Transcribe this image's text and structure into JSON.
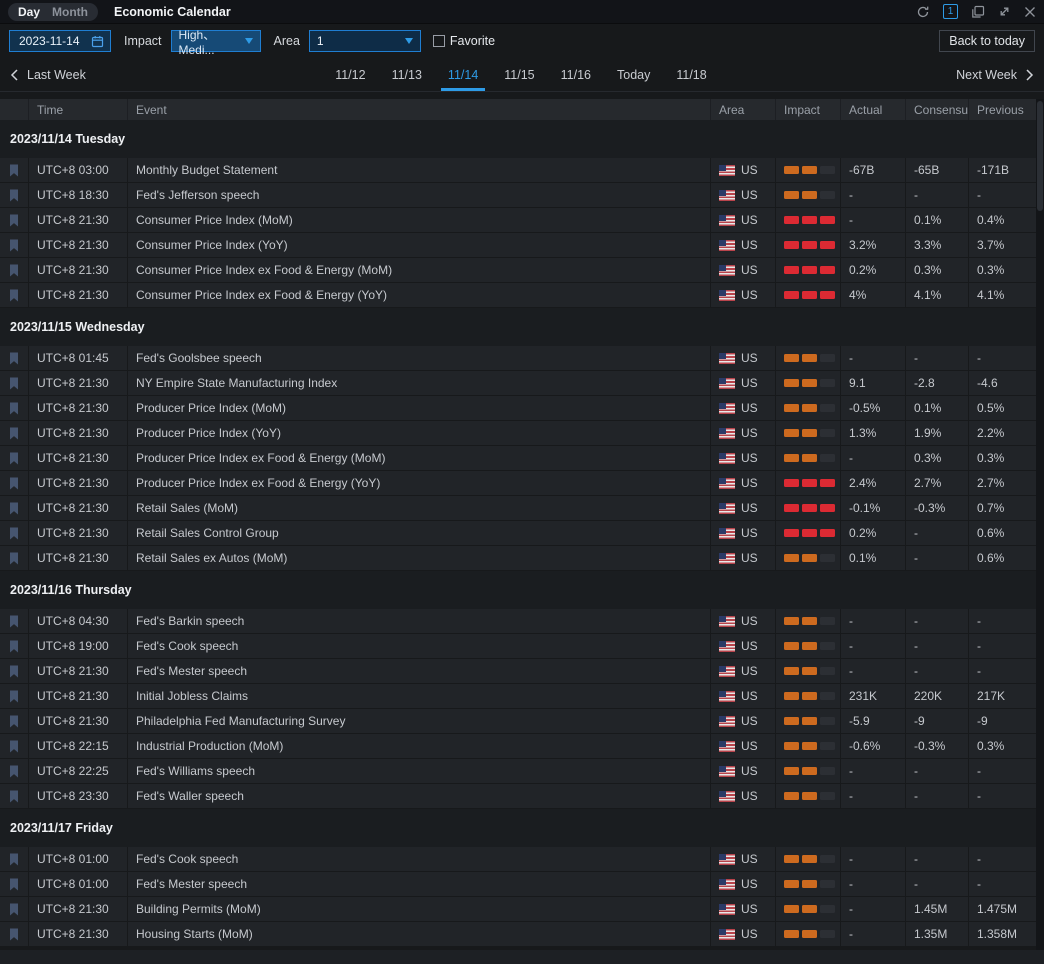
{
  "top_bar": {
    "view_tabs": [
      {
        "label": "Day",
        "active": true
      },
      {
        "label": "Month",
        "active": false
      }
    ],
    "title": "Economic Calendar",
    "panel_badge": "1"
  },
  "filters": {
    "date_value": "2023-11-14",
    "impact_label": "Impact",
    "impact_value": "High、Medi...",
    "area_label": "Area",
    "area_value": "1",
    "favorite_label": "Favorite",
    "back_to_today_label": "Back to today"
  },
  "week_nav": {
    "prev_label": "Last Week",
    "next_label": "Next Week",
    "days": [
      {
        "label": "11/12",
        "active": false
      },
      {
        "label": "11/13",
        "active": false
      },
      {
        "label": "11/14",
        "active": true
      },
      {
        "label": "11/15",
        "active": false
      },
      {
        "label": "11/16",
        "active": false
      },
      {
        "label": "Today",
        "active": false
      },
      {
        "label": "11/18",
        "active": false
      }
    ]
  },
  "table": {
    "columns": [
      "Time",
      "Event",
      "Area",
      "Impact",
      "Actual",
      "Consensus",
      "Previous"
    ],
    "groups": [
      {
        "date": "2023/11/14 Tuesday",
        "rows": [
          {
            "time": "UTC+8 03:00",
            "event": "Monthly Budget Statement",
            "area": "US",
            "impact": "medium",
            "actual": "-67B",
            "consensus": "-65B",
            "previous": "-171B"
          },
          {
            "time": "UTC+8 18:30",
            "event": "Fed's Jefferson speech",
            "area": "US",
            "impact": "medium",
            "actual": "-",
            "consensus": "-",
            "previous": "-"
          },
          {
            "time": "UTC+8 21:30",
            "event": "Consumer Price Index (MoM)",
            "area": "US",
            "impact": "high",
            "actual": "-",
            "consensus": "0.1%",
            "previous": "0.4%"
          },
          {
            "time": "UTC+8 21:30",
            "event": "Consumer Price Index (YoY)",
            "area": "US",
            "impact": "high",
            "actual": "3.2%",
            "consensus": "3.3%",
            "previous": "3.7%"
          },
          {
            "time": "UTC+8 21:30",
            "event": "Consumer Price Index ex Food & Energy (MoM)",
            "area": "US",
            "impact": "high",
            "actual": "0.2%",
            "consensus": "0.3%",
            "previous": "0.3%"
          },
          {
            "time": "UTC+8 21:30",
            "event": "Consumer Price Index ex Food & Energy (YoY)",
            "area": "US",
            "impact": "high",
            "actual": "4%",
            "consensus": "4.1%",
            "previous": "4.1%"
          }
        ]
      },
      {
        "date": "2023/11/15 Wednesday",
        "rows": [
          {
            "time": "UTC+8 01:45",
            "event": "Fed's Goolsbee speech",
            "area": "US",
            "impact": "medium",
            "actual": "-",
            "consensus": "-",
            "previous": "-"
          },
          {
            "time": "UTC+8 21:30",
            "event": "NY Empire State Manufacturing Index",
            "area": "US",
            "impact": "medium",
            "actual": "9.1",
            "consensus": "-2.8",
            "previous": "-4.6"
          },
          {
            "time": "UTC+8 21:30",
            "event": "Producer Price Index (MoM)",
            "area": "US",
            "impact": "medium",
            "actual": "-0.5%",
            "consensus": "0.1%",
            "previous": "0.5%"
          },
          {
            "time": "UTC+8 21:30",
            "event": "Producer Price Index (YoY)",
            "area": "US",
            "impact": "medium",
            "actual": "1.3%",
            "consensus": "1.9%",
            "previous": "2.2%"
          },
          {
            "time": "UTC+8 21:30",
            "event": "Producer Price Index ex Food & Energy (MoM)",
            "area": "US",
            "impact": "medium",
            "actual": "-",
            "consensus": "0.3%",
            "previous": "0.3%"
          },
          {
            "time": "UTC+8 21:30",
            "event": "Producer Price Index ex Food & Energy (YoY)",
            "area": "US",
            "impact": "high",
            "actual": "2.4%",
            "consensus": "2.7%",
            "previous": "2.7%"
          },
          {
            "time": "UTC+8 21:30",
            "event": "Retail Sales (MoM)",
            "area": "US",
            "impact": "high",
            "actual": "-0.1%",
            "consensus": "-0.3%",
            "previous": "0.7%"
          },
          {
            "time": "UTC+8 21:30",
            "event": "Retail Sales Control Group",
            "area": "US",
            "impact": "high",
            "actual": "0.2%",
            "consensus": "-",
            "previous": "0.6%"
          },
          {
            "time": "UTC+8 21:30",
            "event": "Retail Sales ex Autos (MoM)",
            "area": "US",
            "impact": "medium",
            "actual": "0.1%",
            "consensus": "-",
            "previous": "0.6%"
          }
        ]
      },
      {
        "date": "2023/11/16 Thursday",
        "rows": [
          {
            "time": "UTC+8 04:30",
            "event": "Fed's Barkin speech",
            "area": "US",
            "impact": "medium",
            "actual": "-",
            "consensus": "-",
            "previous": "-"
          },
          {
            "time": "UTC+8 19:00",
            "event": "Fed's Cook speech",
            "area": "US",
            "impact": "medium",
            "actual": "-",
            "consensus": "-",
            "previous": "-"
          },
          {
            "time": "UTC+8 21:30",
            "event": "Fed's Mester speech",
            "area": "US",
            "impact": "medium",
            "actual": "-",
            "consensus": "-",
            "previous": "-"
          },
          {
            "time": "UTC+8 21:30",
            "event": "Initial Jobless Claims",
            "area": "US",
            "impact": "medium",
            "actual": "231K",
            "consensus": "220K",
            "previous": "217K"
          },
          {
            "time": "UTC+8 21:30",
            "event": "Philadelphia Fed Manufacturing Survey",
            "area": "US",
            "impact": "medium",
            "actual": "-5.9",
            "consensus": "-9",
            "previous": "-9"
          },
          {
            "time": "UTC+8 22:15",
            "event": "Industrial Production (MoM)",
            "area": "US",
            "impact": "medium",
            "actual": "-0.6%",
            "consensus": "-0.3%",
            "previous": "0.3%"
          },
          {
            "time": "UTC+8 22:25",
            "event": "Fed's Williams speech",
            "area": "US",
            "impact": "medium",
            "actual": "-",
            "consensus": "-",
            "previous": "-"
          },
          {
            "time": "UTC+8 23:30",
            "event": "Fed's Waller speech",
            "area": "US",
            "impact": "medium",
            "actual": "-",
            "consensus": "-",
            "previous": "-"
          }
        ]
      },
      {
        "date": "2023/11/17 Friday",
        "rows": [
          {
            "time": "UTC+8 01:00",
            "event": "Fed's Cook speech",
            "area": "US",
            "impact": "medium",
            "actual": "-",
            "consensus": "-",
            "previous": "-"
          },
          {
            "time": "UTC+8 01:00",
            "event": "Fed's Mester speech",
            "area": "US",
            "impact": "medium",
            "actual": "-",
            "consensus": "-",
            "previous": "-"
          },
          {
            "time": "UTC+8 21:30",
            "event": "Building Permits (MoM)",
            "area": "US",
            "impact": "medium",
            "actual": "-",
            "consensus": "1.45M",
            "previous": "1.475M"
          },
          {
            "time": "UTC+8 21:30",
            "event": "Housing Starts (MoM)",
            "area": "US",
            "impact": "medium",
            "actual": "-",
            "consensus": "1.35M",
            "previous": "1.358M"
          }
        ]
      }
    ]
  },
  "colors": {
    "accent_blue": "#1f7ed2",
    "active_day_blue": "#2e9be6",
    "impact_high_red": "#dc2a33",
    "impact_medium_orange": "#cd6a1f",
    "row_background": "#212428",
    "page_background": "#17191b"
  }
}
